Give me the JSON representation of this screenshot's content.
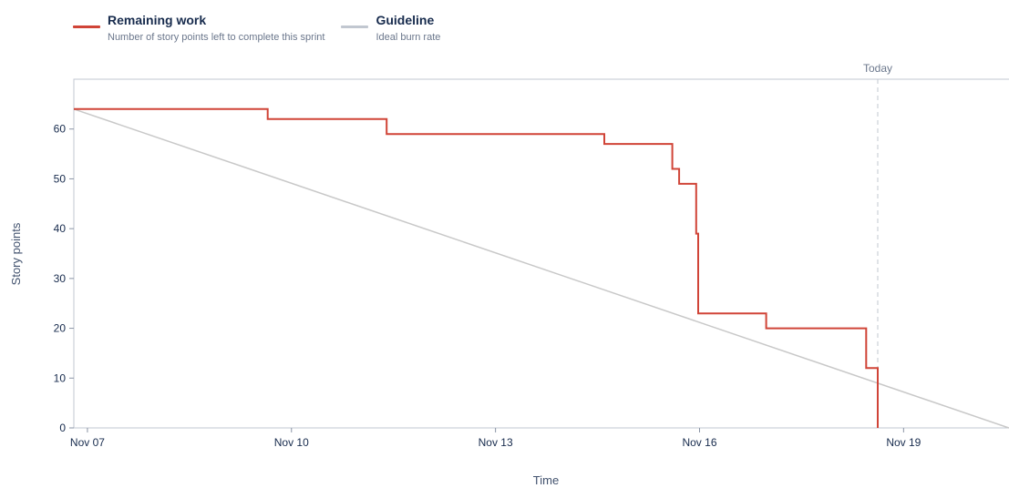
{
  "legend": {
    "remaining": {
      "title": "Remaining work",
      "desc": "Number of story points left to complete this sprint",
      "color": "#d04437"
    },
    "guideline": {
      "title": "Guideline",
      "desc": "Ideal burn rate",
      "color": "#c1c7d0"
    }
  },
  "chart_data": {
    "type": "line",
    "xlabel": "Time",
    "ylabel": "Story points",
    "xlim": [
      6.8,
      20.55
    ],
    "ylim": [
      0,
      70
    ],
    "x_ticks": [
      {
        "value": 7,
        "label": "Nov 07"
      },
      {
        "value": 10,
        "label": "Nov 10"
      },
      {
        "value": 13,
        "label": "Nov 13"
      },
      {
        "value": 16,
        "label": "Nov 16"
      },
      {
        "value": 19,
        "label": "Nov 19"
      }
    ],
    "y_ticks": [
      0,
      10,
      20,
      30,
      40,
      50,
      60
    ],
    "today": {
      "x": 18.62,
      "label": "Today"
    },
    "grid": false,
    "legend_position": "top-left",
    "series": [
      {
        "name": "Remaining work",
        "color": "#d04437",
        "step": true,
        "points": [
          [
            6.8,
            64
          ],
          [
            9.65,
            64
          ],
          [
            9.65,
            62
          ],
          [
            11.4,
            62
          ],
          [
            11.4,
            59
          ],
          [
            14.6,
            59
          ],
          [
            14.6,
            57
          ],
          [
            15.6,
            57
          ],
          [
            15.6,
            52
          ],
          [
            15.7,
            52
          ],
          [
            15.7,
            49
          ],
          [
            15.95,
            49
          ],
          [
            15.95,
            39
          ],
          [
            15.98,
            39
          ],
          [
            15.98,
            23
          ],
          [
            16.98,
            23
          ],
          [
            16.98,
            20
          ],
          [
            18.45,
            20
          ],
          [
            18.45,
            12
          ],
          [
            18.62,
            12
          ],
          [
            18.62,
            0
          ]
        ]
      },
      {
        "name": "Guideline",
        "color": "#c8c8c8",
        "step": false,
        "points": [
          [
            6.8,
            64
          ],
          [
            20.55,
            0
          ]
        ]
      }
    ]
  }
}
